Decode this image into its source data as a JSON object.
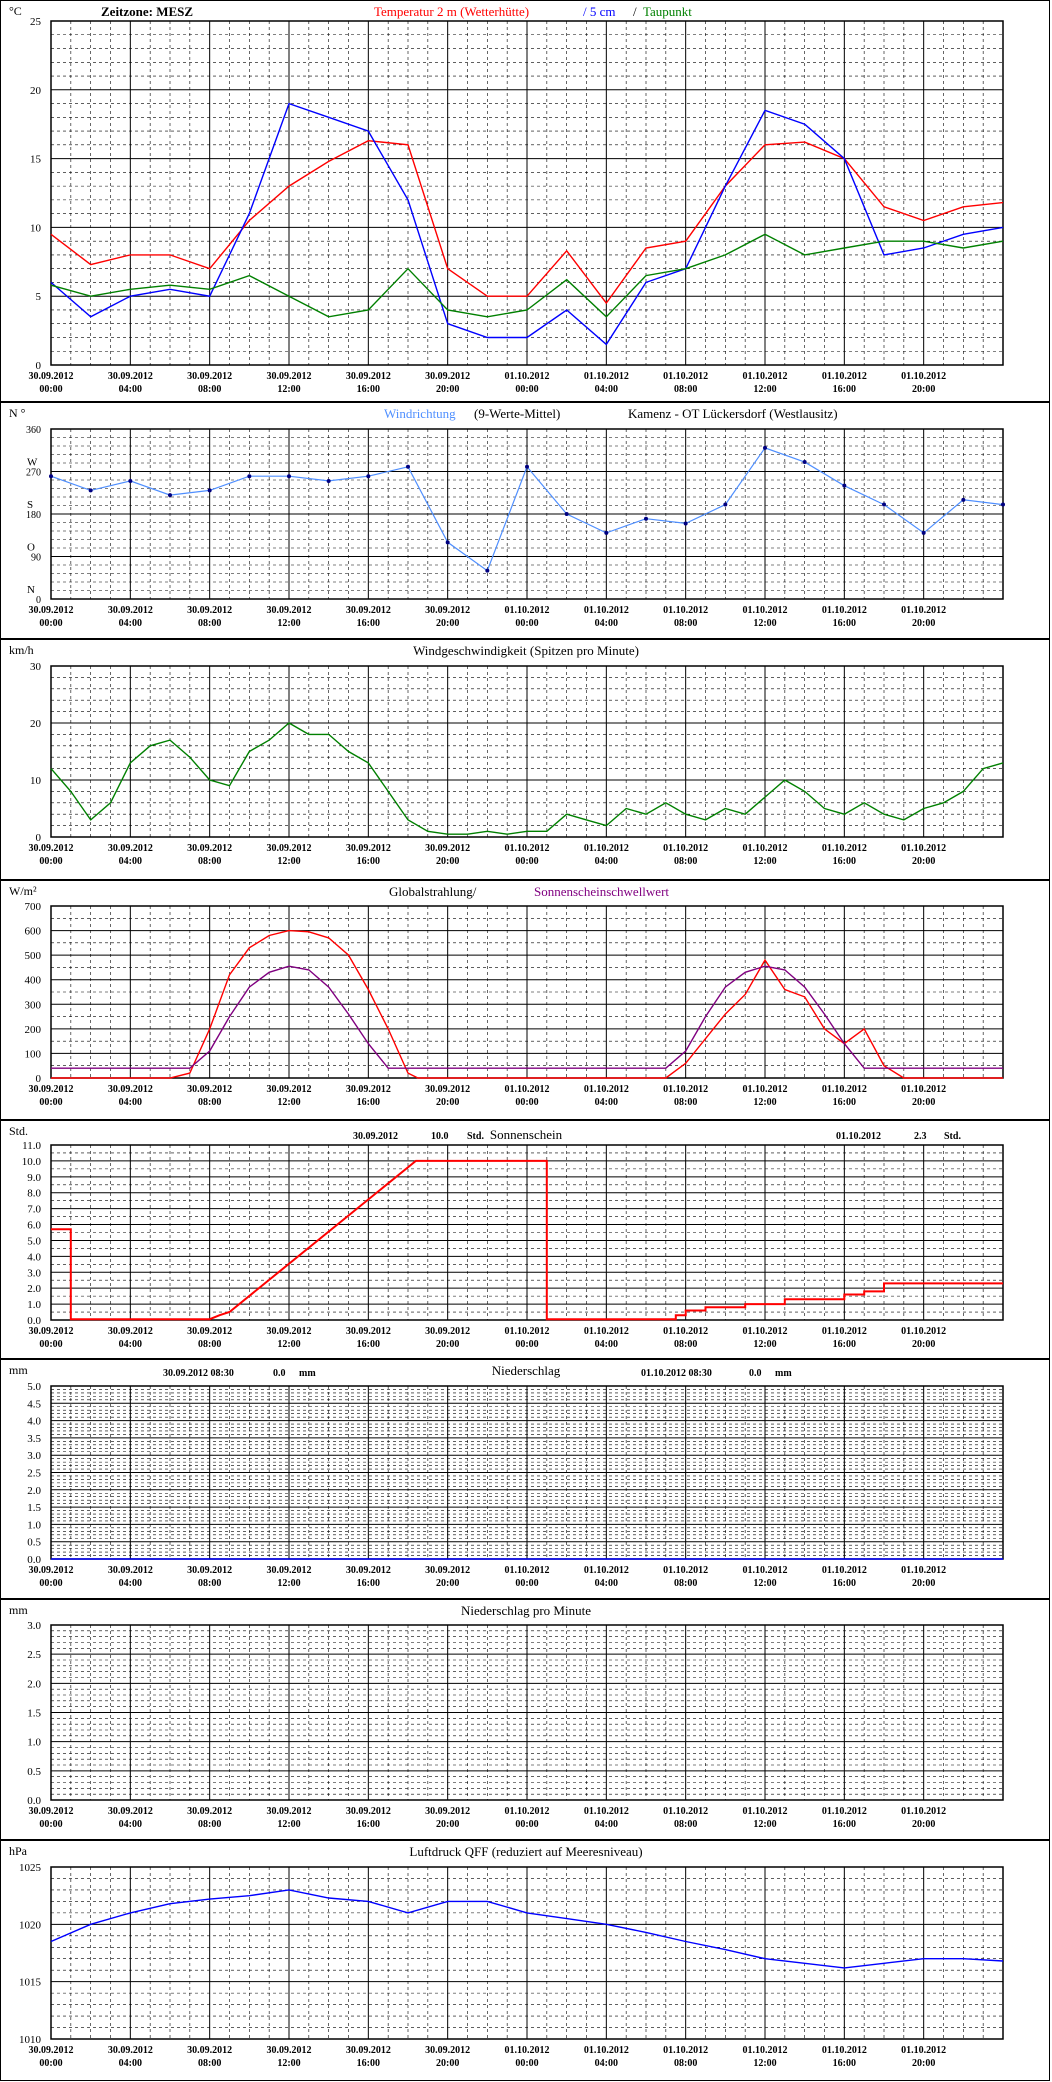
{
  "time_labels": [
    [
      "30.09.2012",
      "00:00"
    ],
    [
      "30.09.2012",
      "04:00"
    ],
    [
      "30.09.2012",
      "08:00"
    ],
    [
      "30.09.2012",
      "12:00"
    ],
    [
      "30.09.2012",
      "16:00"
    ],
    [
      "30.09.2012",
      "20:00"
    ],
    [
      "01.10.2012",
      "00:00"
    ],
    [
      "01.10.2012",
      "04:00"
    ],
    [
      "01.10.2012",
      "08:00"
    ],
    [
      "01.10.2012",
      "12:00"
    ],
    [
      "01.10.2012",
      "16:00"
    ],
    [
      "01.10.2012",
      "20:00"
    ]
  ],
  "colors": {
    "red": "#ff0000",
    "blue": "#0000ff",
    "green": "#008000",
    "purple": "#800080",
    "navy": "#000080",
    "lightblue": "#4f8fff",
    "black": "#000000"
  },
  "panels": {
    "temp": {
      "unit": "°C",
      "title_parts": [
        {
          "text": "Zeitzone: MESZ",
          "color": "#000000"
        },
        {
          "text": "Temperatur 2 m (Wetterhütte)",
          "color": "#ff0000"
        },
        {
          "text": "/  5 cm",
          "color": "#0000ff"
        },
        {
          "text": "/",
          "color": "#000000"
        },
        {
          "text": "Taupunkt",
          "color": "#008000"
        }
      ]
    },
    "wind_dir": {
      "unit": "N °",
      "ylabels": [
        "W",
        "S",
        "O",
        "N"
      ],
      "title_parts": [
        {
          "text": "Windrichtung",
          "color": "#4f8fff"
        },
        {
          "text": "(9-Werte-Mittel)",
          "color": "#000000"
        },
        {
          "text": "Kamenz - OT Lückersdorf (Westlausitz)",
          "color": "#000000"
        }
      ]
    },
    "wind_speed": {
      "unit": "km/h",
      "title": "Windgeschwindigkeit (Spitzen pro Minute)"
    },
    "radiation": {
      "unit": "W/m²",
      "title_parts": [
        {
          "text": "Globalstrahlung/",
          "color": "#000000"
        },
        {
          "text": "Sonnenscheinschwellwert",
          "color": "#800080"
        }
      ]
    },
    "sunshine": {
      "unit": "Std.",
      "title": "Sonnenschein",
      "day1": {
        "date": "30.09.2012",
        "value": "10.0",
        "unit": "Std."
      },
      "day2": {
        "date": "01.10.2012",
        "value": "2.3",
        "unit": "Std."
      }
    },
    "precip": {
      "unit": "mm",
      "title": "Niederschlag",
      "day1": {
        "date": "30.09.2012 08:30",
        "value": "0.0",
        "unit": "mm"
      },
      "day2": {
        "date": "01.10.2012 08:30",
        "value": "0.0",
        "unit": "mm"
      }
    },
    "precip_min": {
      "unit": "mm",
      "title": "Niederschlag pro Minute"
    },
    "pressure": {
      "unit": "hPa",
      "title": "Luftdruck QFF (reduziert auf Meeresniveau)"
    }
  },
  "chart_data": [
    {
      "type": "line",
      "x_hours": [
        0,
        2,
        4,
        6,
        8,
        10,
        12,
        14,
        16,
        18,
        20,
        22,
        24,
        26,
        28,
        30,
        32,
        34,
        36,
        38,
        40,
        42,
        44,
        46,
        48
      ],
      "xlim": [
        0,
        48
      ],
      "ylim": [
        0,
        25
      ],
      "yticks": [
        0,
        5,
        10,
        15,
        20,
        25
      ],
      "series": [
        {
          "name": "Temperatur 2 m (Wetterhütte)",
          "color": "#ff0000",
          "values": [
            9.5,
            7.3,
            8.0,
            8.0,
            7.0,
            10.5,
            13.0,
            14.8,
            16.3,
            16.0,
            7.0,
            5.0,
            5.0,
            8.3,
            4.5,
            8.5,
            9.0,
            13.0,
            16.0,
            16.2,
            15.0,
            11.5,
            10.5,
            11.5,
            11.8
          ]
        },
        {
          "name": "5 cm",
          "color": "#0000ff",
          "values": [
            6.0,
            3.5,
            5.0,
            5.5,
            5.0,
            11.0,
            19.0,
            18.0,
            17.0,
            12.0,
            3.0,
            2.0,
            2.0,
            4.0,
            1.5,
            6.0,
            7.0,
            13.0,
            18.5,
            17.5,
            15.0,
            8.0,
            8.5,
            9.5,
            10.0
          ]
        },
        {
          "name": "Taupunkt",
          "color": "#008000",
          "values": [
            5.8,
            5.0,
            5.5,
            5.8,
            5.5,
            6.5,
            5.0,
            3.5,
            4.0,
            7.0,
            4.0,
            3.5,
            4.0,
            6.2,
            3.5,
            6.5,
            7.0,
            8.0,
            9.5,
            8.0,
            8.5,
            9.0,
            9.0,
            8.5,
            9.0
          ]
        }
      ]
    },
    {
      "type": "scatter",
      "x_hours": [
        0,
        2,
        4,
        6,
        8,
        10,
        12,
        14,
        16,
        18,
        20,
        22,
        24,
        26,
        28,
        30,
        32,
        34,
        36,
        38,
        40,
        42,
        44,
        46,
        48
      ],
      "xlim": [
        0,
        48
      ],
      "ylim": [
        0,
        360
      ],
      "yticks": [
        0,
        90,
        180,
        270,
        360
      ],
      "series": [
        {
          "name": "Windrichtung",
          "color": "#000080",
          "values": [
            260,
            230,
            250,
            220,
            230,
            260,
            260,
            250,
            260,
            280,
            120,
            60,
            280,
            180,
            140,
            170,
            160,
            200,
            320,
            290,
            240,
            200,
            140,
            210,
            200
          ]
        }
      ]
    },
    {
      "type": "line",
      "x_hours": [
        0,
        1,
        2,
        3,
        4,
        5,
        6,
        7,
        8,
        9,
        10,
        11,
        12,
        13,
        14,
        15,
        16,
        17,
        18,
        19,
        20,
        21,
        22,
        23,
        24,
        25,
        26,
        27,
        28,
        29,
        30,
        31,
        32,
        33,
        34,
        35,
        36,
        37,
        38,
        39,
        40,
        41,
        42,
        43,
        44,
        45,
        46,
        47,
        48
      ],
      "xlim": [
        0,
        48
      ],
      "ylim": [
        0,
        30
      ],
      "yticks": [
        0,
        10,
        20,
        30
      ],
      "series": [
        {
          "name": "Windgeschwindigkeit",
          "color": "#008000",
          "values": [
            12,
            8,
            3,
            6,
            13,
            16,
            17,
            14,
            10,
            9,
            15,
            17,
            20,
            18,
            18,
            15,
            13,
            8,
            3,
            1,
            0.5,
            0.5,
            1,
            0.5,
            1,
            1,
            4,
            3,
            2,
            5,
            4,
            6,
            4,
            3,
            5,
            4,
            7,
            10,
            8,
            5,
            4,
            6,
            4,
            3,
            5,
            6,
            8,
            12,
            13
          ]
        }
      ]
    },
    {
      "type": "line",
      "x_hours": [
        0,
        6,
        7,
        8,
        9,
        10,
        11,
        12,
        13,
        14,
        15,
        16,
        17,
        18,
        18.5,
        24,
        31,
        32,
        33,
        34,
        35,
        36,
        37,
        38,
        39,
        40,
        41,
        42,
        43,
        48
      ],
      "xlim": [
        0,
        48
      ],
      "ylim": [
        0,
        700
      ],
      "yticks": [
        0,
        100,
        200,
        300,
        400,
        500,
        600,
        700
      ],
      "series": [
        {
          "name": "Globalstrahlung",
          "color": "#ff0000",
          "values": [
            0,
            0,
            20,
            200,
            420,
            530,
            580,
            600,
            595,
            570,
            500,
            360,
            200,
            20,
            0,
            0,
            0,
            60,
            160,
            260,
            340,
            480,
            360,
            330,
            200,
            140,
            200,
            50,
            0,
            0
          ]
        },
        {
          "name": "Sonnenscheinschwellwert",
          "color": "#800080",
          "values": [
            40,
            40,
            40,
            110,
            250,
            370,
            430,
            455,
            440,
            370,
            260,
            140,
            40,
            40,
            40,
            40,
            40,
            110,
            250,
            370,
            430,
            455,
            440,
            370,
            260,
            140,
            40,
            40,
            40,
            40
          ]
        }
      ]
    },
    {
      "type": "line",
      "x_hours": [
        0,
        1,
        1,
        8,
        8.5,
        9,
        9,
        18.4,
        24,
        25,
        25,
        31.5,
        31.5,
        32,
        32,
        33,
        33,
        35,
        35,
        37,
        37,
        40,
        40,
        41,
        41,
        42,
        42,
        48
      ],
      "xlim": [
        0,
        48
      ],
      "ylim": [
        0,
        11
      ],
      "yticks": [
        0,
        1,
        2,
        3,
        4,
        5,
        6,
        7,
        8,
        9,
        10,
        11
      ],
      "series": [
        {
          "name": "Sonnenschein",
          "color": "#ff0000",
          "values": [
            5.7,
            5.7,
            0.05,
            0.05,
            0.3,
            0.5,
            0.5,
            10.0,
            10.0,
            10.0,
            0.05,
            0.05,
            0.3,
            0.3,
            0.6,
            0.6,
            0.8,
            0.8,
            1.0,
            1.0,
            1.3,
            1.3,
            1.6,
            1.6,
            1.8,
            1.8,
            2.3,
            2.3
          ]
        }
      ]
    },
    {
      "type": "line",
      "x_hours": [
        0,
        48
      ],
      "xlim": [
        0,
        48
      ],
      "ylim": [
        0,
        5
      ],
      "yticks": [
        0,
        0.5,
        1,
        1.5,
        2,
        2.5,
        3,
        3.5,
        4,
        4.5,
        5
      ],
      "series": [
        {
          "name": "Niederschlag",
          "color": "#0000ff",
          "values": [
            0,
            0
          ]
        }
      ]
    },
    {
      "type": "line",
      "x_hours": [
        0,
        48
      ],
      "xlim": [
        0,
        48
      ],
      "ylim": [
        0,
        3
      ],
      "yticks": [
        0,
        0.5,
        1,
        1.5,
        2,
        2.5,
        3
      ],
      "series": []
    },
    {
      "type": "line",
      "x_hours": [
        0,
        2,
        4,
        6,
        8,
        10,
        12,
        14,
        16,
        18,
        20,
        22,
        24,
        26,
        28,
        30,
        32,
        34,
        36,
        38,
        40,
        42,
        44,
        46,
        48
      ],
      "xlim": [
        0,
        48
      ],
      "ylim": [
        1010,
        1025
      ],
      "yticks": [
        1010,
        1015,
        1020,
        1025
      ],
      "series": [
        {
          "name": "Luftdruck QFF",
          "color": "#0000ff",
          "values": [
            1018.5,
            1020.0,
            1021.0,
            1021.8,
            1022.2,
            1022.5,
            1023.0,
            1022.3,
            1022.0,
            1021.0,
            1022.0,
            1022.0,
            1021.0,
            1020.5,
            1020.0,
            1019.3,
            1018.5,
            1017.8,
            1017.0,
            1016.6,
            1016.2,
            1016.6,
            1017.0,
            1017.0,
            1016.8
          ]
        }
      ]
    }
  ]
}
